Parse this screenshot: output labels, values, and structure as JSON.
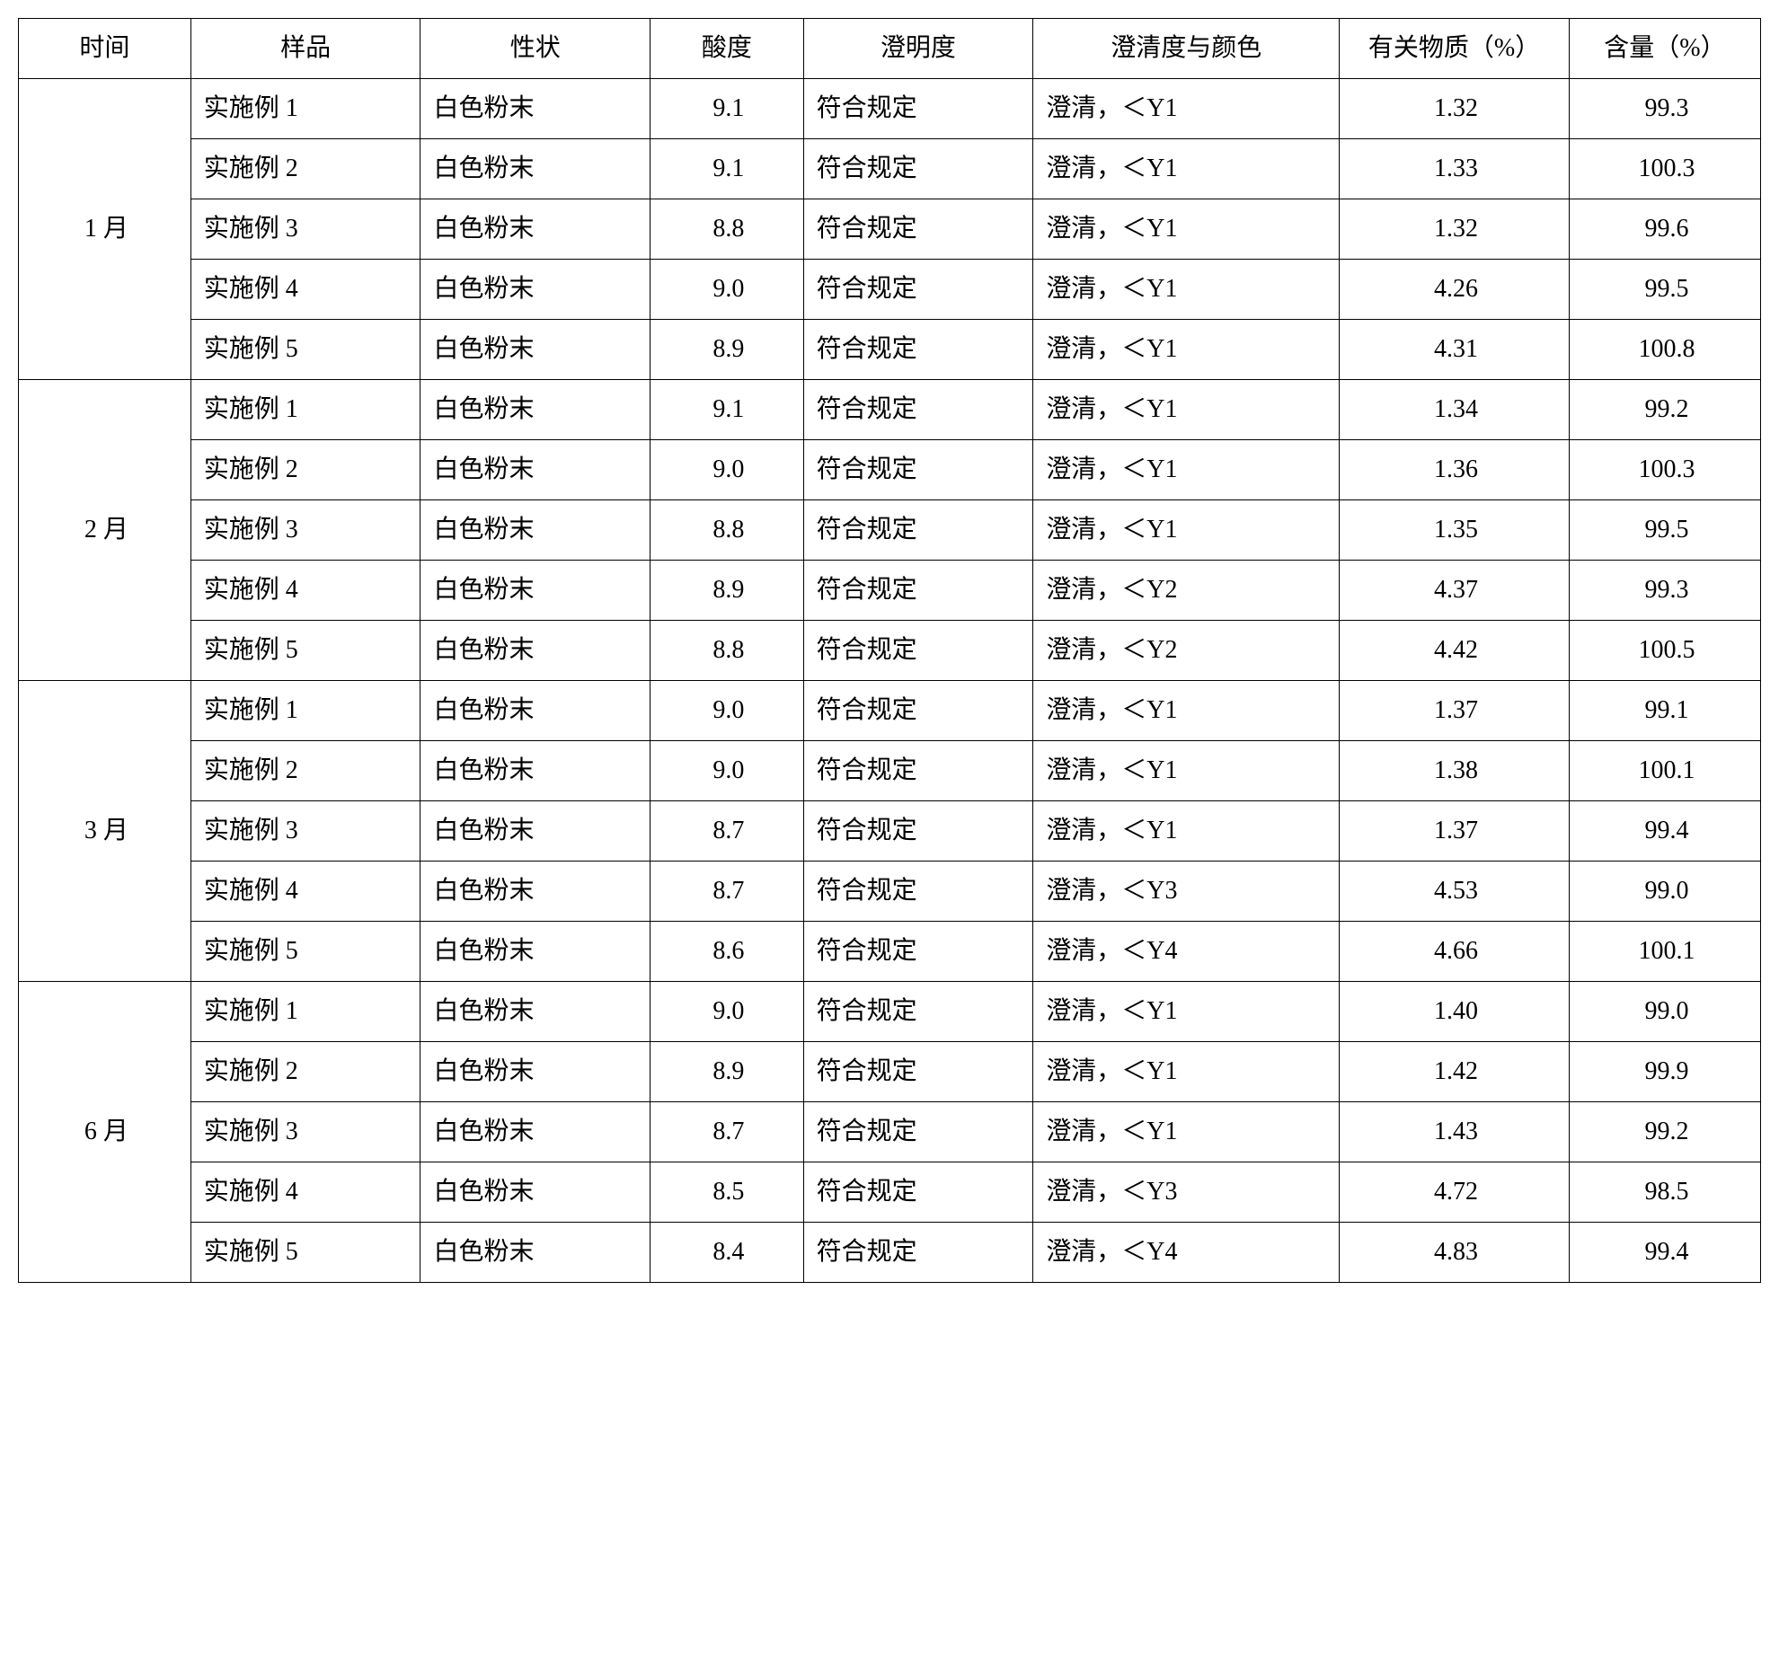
{
  "headers": {
    "time": "时间",
    "sample": "样品",
    "appearance": "性状",
    "acidity": "酸度",
    "clarity": "澄明度",
    "clarity_color": "澄清度与颜色",
    "related_substances": "有关物质（%）",
    "content": "含量（%）"
  },
  "groups": [
    {
      "time": "1 月",
      "rows": [
        {
          "sample": "实施例 1",
          "appearance": "白色粉末",
          "acidity": "9.1",
          "clarity": "符合规定",
          "clarity_color": "澄清，＜Y1",
          "related": "1.32",
          "content": "99.3"
        },
        {
          "sample": "实施例 2",
          "appearance": "白色粉末",
          "acidity": "9.1",
          "clarity": "符合规定",
          "clarity_color": "澄清，＜Y1",
          "related": "1.33",
          "content": "100.3"
        },
        {
          "sample": "实施例 3",
          "appearance": "白色粉末",
          "acidity": "8.8",
          "clarity": "符合规定",
          "clarity_color": "澄清，＜Y1",
          "related": "1.32",
          "content": "99.6"
        },
        {
          "sample": "实施例 4",
          "appearance": "白色粉末",
          "acidity": "9.0",
          "clarity": "符合规定",
          "clarity_color": "澄清，＜Y1",
          "related": "4.26",
          "content": "99.5"
        },
        {
          "sample": "实施例 5",
          "appearance": "白色粉末",
          "acidity": "8.9",
          "clarity": "符合规定",
          "clarity_color": "澄清，＜Y1",
          "related": "4.31",
          "content": "100.8"
        }
      ]
    },
    {
      "time": "2 月",
      "rows": [
        {
          "sample": "实施例 1",
          "appearance": "白色粉末",
          "acidity": "9.1",
          "clarity": "符合规定",
          "clarity_color": "澄清，＜Y1",
          "related": "1.34",
          "content": "99.2"
        },
        {
          "sample": "实施例 2",
          "appearance": "白色粉末",
          "acidity": "9.0",
          "clarity": "符合规定",
          "clarity_color": "澄清，＜Y1",
          "related": "1.36",
          "content": "100.3"
        },
        {
          "sample": "实施例 3",
          "appearance": "白色粉末",
          "acidity": "8.8",
          "clarity": "符合规定",
          "clarity_color": "澄清，＜Y1",
          "related": "1.35",
          "content": "99.5"
        },
        {
          "sample": "实施例 4",
          "appearance": "白色粉末",
          "acidity": "8.9",
          "clarity": "符合规定",
          "clarity_color": "澄清，＜Y2",
          "related": "4.37",
          "content": "99.3"
        },
        {
          "sample": "实施例 5",
          "appearance": "白色粉末",
          "acidity": "8.8",
          "clarity": "符合规定",
          "clarity_color": "澄清，＜Y2",
          "related": "4.42",
          "content": "100.5"
        }
      ]
    },
    {
      "time": "3 月",
      "rows": [
        {
          "sample": "实施例 1",
          "appearance": "白色粉末",
          "acidity": "9.0",
          "clarity": "符合规定",
          "clarity_color": "澄清，＜Y1",
          "related": "1.37",
          "content": "99.1"
        },
        {
          "sample": "实施例 2",
          "appearance": "白色粉末",
          "acidity": "9.0",
          "clarity": "符合规定",
          "clarity_color": "澄清，＜Y1",
          "related": "1.38",
          "content": "100.1"
        },
        {
          "sample": "实施例 3",
          "appearance": "白色粉末",
          "acidity": "8.7",
          "clarity": "符合规定",
          "clarity_color": "澄清，＜Y1",
          "related": "1.37",
          "content": "99.4"
        },
        {
          "sample": "实施例 4",
          "appearance": "白色粉末",
          "acidity": "8.7",
          "clarity": "符合规定",
          "clarity_color": "澄清，＜Y3",
          "related": "4.53",
          "content": "99.0"
        },
        {
          "sample": "实施例 5",
          "appearance": "白色粉末",
          "acidity": "8.6",
          "clarity": "符合规定",
          "clarity_color": "澄清，＜Y4",
          "related": "4.66",
          "content": "100.1"
        }
      ]
    },
    {
      "time": "6 月",
      "rows": [
        {
          "sample": "实施例 1",
          "appearance": "白色粉末",
          "acidity": "9.0",
          "clarity": "符合规定",
          "clarity_color": "澄清，＜Y1",
          "related": "1.40",
          "content": "99.0"
        },
        {
          "sample": "实施例 2",
          "appearance": "白色粉末",
          "acidity": "8.9",
          "clarity": "符合规定",
          "clarity_color": "澄清，＜Y1",
          "related": "1.42",
          "content": "99.9"
        },
        {
          "sample": "实施例 3",
          "appearance": "白色粉末",
          "acidity": "8.7",
          "clarity": "符合规定",
          "clarity_color": "澄清，＜Y1",
          "related": "1.43",
          "content": "99.2"
        },
        {
          "sample": "实施例 4",
          "appearance": "白色粉末",
          "acidity": "8.5",
          "clarity": "符合规定",
          "clarity_color": "澄清，＜Y3",
          "related": "4.72",
          "content": "98.5"
        },
        {
          "sample": "实施例 5",
          "appearance": "白色粉末",
          "acidity": "8.4",
          "clarity": "符合规定",
          "clarity_color": "澄清，＜Y4",
          "related": "4.83",
          "content": "99.4"
        }
      ]
    }
  ]
}
